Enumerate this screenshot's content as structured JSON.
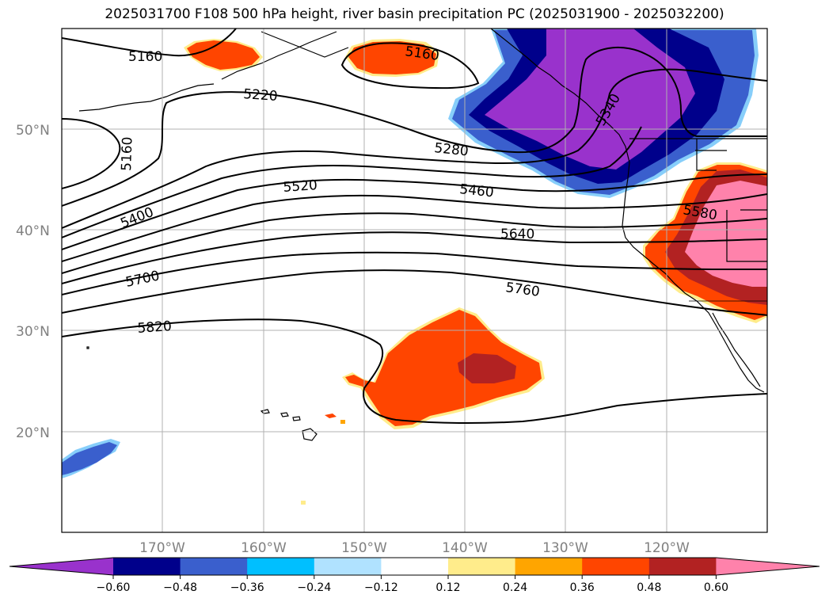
{
  "title": "2025031700 F108 500 hPa height, river basin precipitation PC (2025031900 - 2025032200)",
  "lat_labels": [
    "50°N",
    "40°N",
    "30°N",
    "20°N"
  ],
  "lon_labels": [
    "170°W",
    "160°W",
    "150°W",
    "140°W",
    "130°W",
    "120°W"
  ],
  "contour_labels": [
    "5160",
    "5160",
    "5160",
    "5220",
    "5280",
    "5340",
    "5400",
    "5460",
    "5520",
    "5580",
    "5640",
    "5700",
    "5760",
    "5820"
  ],
  "colorbar": {
    "colors": [
      "#9932CC",
      "#00008B",
      "#3A5FCD",
      "#00BFFF",
      "#B0E2FF",
      "#FFFFFF",
      "#FFEC8B",
      "#FFA500",
      "#FF4500",
      "#B22222",
      "#FF82AB"
    ],
    "tick_labels": [
      "−0.60",
      "−0.48",
      "−0.36",
      "−0.24",
      "−0.12",
      "0.12",
      "0.24",
      "0.36",
      "0.48",
      "0.60"
    ]
  }
}
